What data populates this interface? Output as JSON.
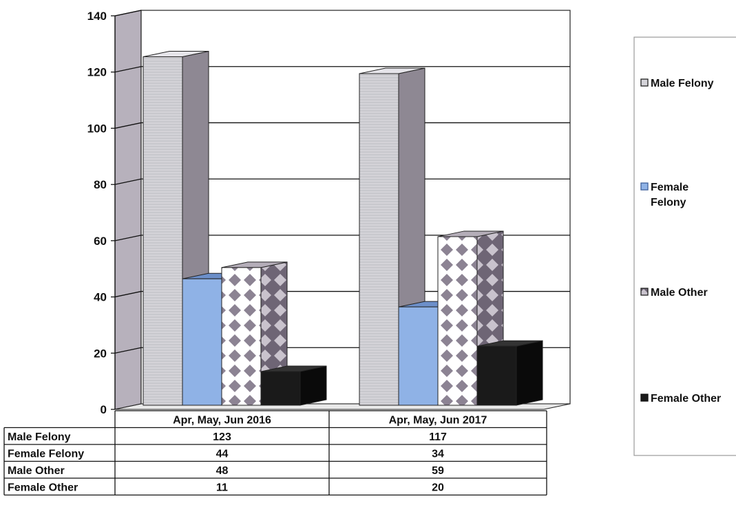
{
  "chart_data": {
    "type": "bar",
    "title": "",
    "xlabel": "",
    "ylabel": "",
    "ylim": [
      0,
      140
    ],
    "yticks": [
      "0",
      "20",
      "40",
      "60",
      "80",
      "100",
      "120",
      "140"
    ],
    "grid": true,
    "legend_position": "right",
    "categories": [
      "Apr, May, Jun 2016",
      "Apr, May, Jun 2017"
    ],
    "series": [
      {
        "name": "Male Felony",
        "values": [
          123,
          117
        ]
      },
      {
        "name": "Female Felony",
        "values": [
          44,
          34
        ]
      },
      {
        "name": "Male Other",
        "values": [
          48,
          59
        ]
      },
      {
        "name": "Female Other",
        "values": [
          11,
          20
        ]
      }
    ],
    "legend_labels": [
      [
        "Male Felony"
      ],
      [
        "Female",
        "Felony"
      ],
      [
        "Male Other"
      ],
      [
        "Female Other"
      ]
    ],
    "data_table": {
      "rows": [
        {
          "label": "Male Felony",
          "cells": [
            "123",
            "117"
          ]
        },
        {
          "label": "Female Felony",
          "cells": [
            "44",
            "34"
          ]
        },
        {
          "label": "Male Other",
          "cells": [
            "48",
            "59"
          ]
        },
        {
          "label": "Female Other",
          "cells": [
            "11",
            "20"
          ]
        }
      ]
    },
    "colors": {
      "male_felony": "#d2d1d6",
      "female_felony": "#8fb2e6",
      "male_other": "#8c8393",
      "female_other": "#1a1a1a",
      "wall": "#b7b1bc"
    }
  }
}
